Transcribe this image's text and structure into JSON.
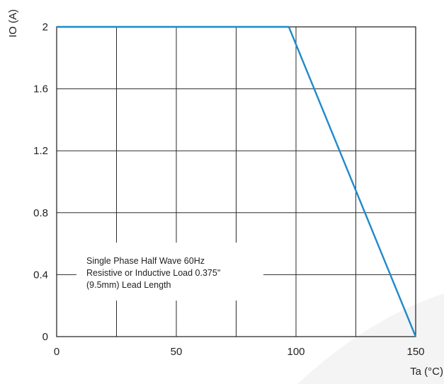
{
  "chart_data": {
    "type": "line",
    "title": "",
    "xlabel": "Ta (°C)",
    "ylabel": "IO (A)",
    "xlim": [
      0,
      150
    ],
    "ylim": [
      0,
      2
    ],
    "xticks": [
      0,
      50,
      100,
      150
    ],
    "xtick_labels": [
      "0",
      "50",
      "100",
      "150"
    ],
    "yticks": [
      0,
      0.4,
      0.8,
      1.2,
      1.6,
      2
    ],
    "ytick_labels": [
      "0",
      "0.4",
      "0.8",
      "1.2",
      "1.6",
      "2"
    ],
    "grid": true,
    "legend": "none",
    "series": [
      {
        "color": "#1e8ac8",
        "x": [
          0,
          97,
          150
        ],
        "y": [
          2,
          2,
          0
        ]
      }
    ],
    "annotation": {
      "lines": [
        "Single Phase Half Wave 60Hz",
        "Resistive or Inductive Load 0.375\"",
        "(9.5mm) Lead Length"
      ]
    }
  }
}
